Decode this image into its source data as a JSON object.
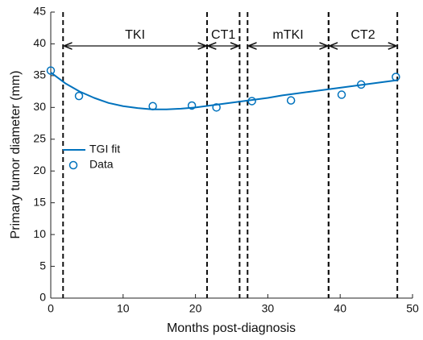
{
  "chart_data": {
    "type": "line",
    "xlabel": "Months post-diagnosis",
    "ylabel": "Primary tumor diameter (mm)",
    "xlim": [
      0,
      50
    ],
    "ylim": [
      0,
      45
    ],
    "xticks": [
      0,
      10,
      20,
      30,
      40,
      50
    ],
    "yticks": [
      0,
      5,
      10,
      15,
      20,
      25,
      30,
      35,
      40,
      45
    ],
    "series": [
      {
        "name": "TGI fit",
        "color": "#0072bd",
        "mode": "line",
        "x": [
          0,
          2,
          4,
          6,
          8,
          10,
          12,
          14,
          16,
          18,
          20,
          22,
          24,
          26,
          28,
          30,
          32,
          34,
          36,
          38,
          40,
          42,
          44,
          46,
          48
        ],
        "values": [
          35.5,
          33.8,
          32.5,
          31.5,
          30.7,
          30.2,
          29.9,
          29.7,
          29.7,
          29.8,
          30.0,
          30.3,
          30.6,
          30.9,
          31.2,
          31.5,
          31.9,
          32.2,
          32.5,
          32.8,
          33.1,
          33.4,
          33.7,
          34.0,
          34.3
        ]
      },
      {
        "name": "Data",
        "color": "#0072bd",
        "mode": "markers",
        "x": [
          0,
          3.9,
          14.1,
          19.5,
          22.9,
          27.8,
          33.2,
          40.2,
          42.9,
          47.7
        ],
        "values": [
          35.8,
          31.8,
          30.2,
          30.3,
          30.0,
          31.0,
          31.1,
          32.0,
          33.6,
          34.8
        ]
      }
    ],
    "phases": [
      {
        "label": "TKI",
        "start": 1.7,
        "end": 21.6
      },
      {
        "label": "CT1",
        "start": 21.6,
        "end": 26.1
      },
      {
        "label": "mTKI",
        "start": 27.2,
        "end": 38.4
      },
      {
        "label": "CT2",
        "start": 38.4,
        "end": 47.9
      }
    ],
    "legend": "upper-left-middle"
  }
}
